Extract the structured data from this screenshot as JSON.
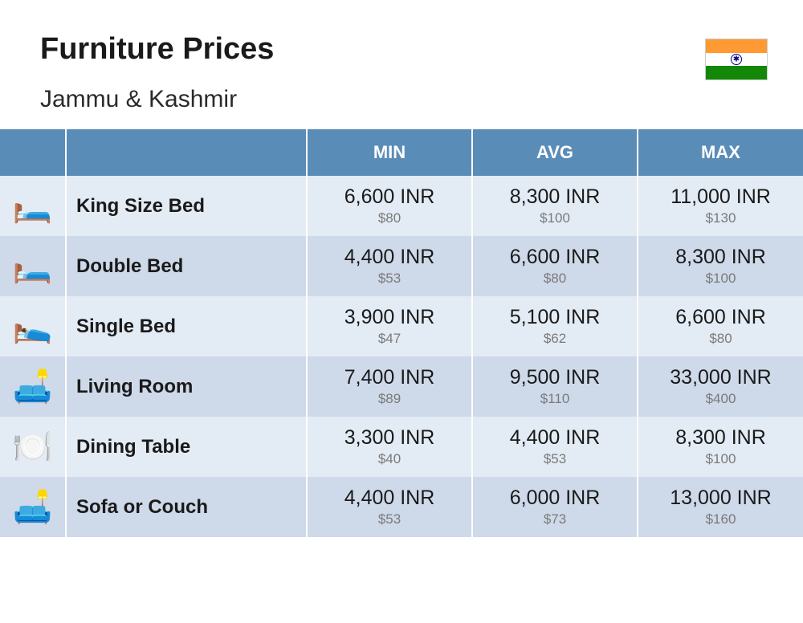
{
  "header": {
    "title": "Furniture Prices",
    "subtitle": "Jammu & Kashmir"
  },
  "flag": {
    "colors": {
      "top": "#ff9933",
      "middle": "#ffffff",
      "bottom": "#138808",
      "chakra": "#000080"
    }
  },
  "table": {
    "columns": {
      "min": "MIN",
      "avg": "AVG",
      "max": "MAX"
    },
    "header_bg": "#5a8cb8",
    "header_fg": "#ffffff",
    "row_light_bg": "#e3ebf4",
    "row_dark_bg": "#ced9e9",
    "inr_fontsize": 25,
    "usd_fontsize": 17,
    "name_fontsize": 24,
    "rows": [
      {
        "icon": "🛏️",
        "icon_name": "king-bed-icon",
        "name": "King Size Bed",
        "min_inr": "6,600 INR",
        "min_usd": "$80",
        "avg_inr": "8,300 INR",
        "avg_usd": "$100",
        "max_inr": "11,000 INR",
        "max_usd": "$130"
      },
      {
        "icon": "🛏️",
        "icon_name": "double-bed-icon",
        "name": "Double Bed",
        "min_inr": "4,400 INR",
        "min_usd": "$53",
        "avg_inr": "6,600 INR",
        "avg_usd": "$80",
        "max_inr": "8,300 INR",
        "max_usd": "$100"
      },
      {
        "icon": "🛌",
        "icon_name": "single-bed-icon",
        "name": "Single Bed",
        "min_inr": "3,900 INR",
        "min_usd": "$47",
        "avg_inr": "5,100 INR",
        "avg_usd": "$62",
        "max_inr": "6,600 INR",
        "max_usd": "$80"
      },
      {
        "icon": "🛋️",
        "icon_name": "living-room-icon",
        "name": "Living Room",
        "min_inr": "7,400 INR",
        "min_usd": "$89",
        "avg_inr": "9,500 INR",
        "avg_usd": "$110",
        "max_inr": "33,000 INR",
        "max_usd": "$400"
      },
      {
        "icon": "🍽️",
        "icon_name": "dining-table-icon",
        "name": "Dining Table",
        "min_inr": "3,300 INR",
        "min_usd": "$40",
        "avg_inr": "4,400 INR",
        "avg_usd": "$53",
        "max_inr": "8,300 INR",
        "max_usd": "$100"
      },
      {
        "icon": "🛋️",
        "icon_name": "sofa-icon",
        "name": "Sofa or Couch",
        "min_inr": "4,400 INR",
        "min_usd": "$53",
        "avg_inr": "6,000 INR",
        "avg_usd": "$73",
        "max_inr": "13,000 INR",
        "max_usd": "$160"
      }
    ]
  }
}
